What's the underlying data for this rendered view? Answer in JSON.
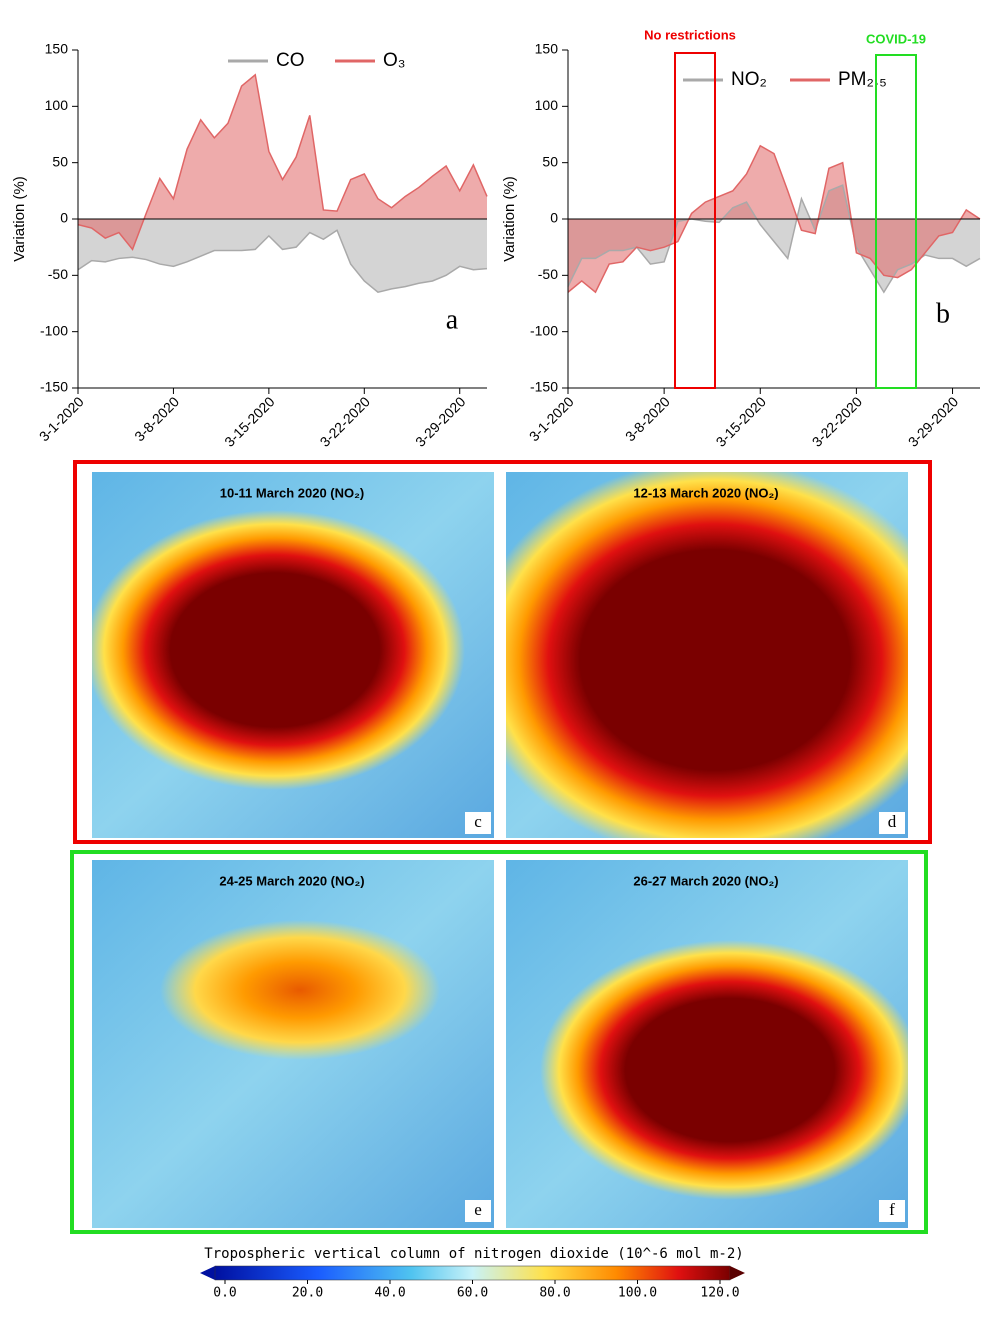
{
  "chart_data": [
    {
      "type": "area",
      "panel_label": "a",
      "ylabel": "Variation (%)",
      "categories": [
        "3-1-2020",
        null,
        null,
        null,
        null,
        null,
        null,
        "3-8-2020",
        null,
        null,
        null,
        null,
        null,
        null,
        "3-15-2020",
        null,
        null,
        null,
        null,
        null,
        null,
        "3-22-2020",
        null,
        null,
        null,
        null,
        null,
        null,
        "3-29-2020",
        null,
        null
      ],
      "series": [
        {
          "name": "CO",
          "color": "#a9a9a9",
          "values": [
            -45,
            -37,
            -38,
            -35,
            -34,
            -36,
            -40,
            -42,
            -38,
            -33,
            -28,
            -28,
            -28,
            -27,
            -15,
            -27,
            -25,
            -12,
            -18,
            -10,
            -40,
            -55,
            -65,
            -62,
            -60,
            -57,
            -55,
            -50,
            -42,
            -45,
            -44
          ]
        },
        {
          "name": "O₃",
          "color": "#e06666",
          "values": [
            -5,
            -8,
            -17,
            -12,
            -27,
            5,
            36,
            18,
            62,
            88,
            72,
            85,
            118,
            128,
            60,
            35,
            55,
            92,
            8,
            7,
            35,
            40,
            18,
            10,
            20,
            28,
            38,
            47,
            25,
            48,
            20
          ]
        }
      ],
      "ylim": [
        -150,
        150
      ],
      "yticks": [
        -150,
        -100,
        -50,
        0,
        50,
        100,
        150
      ]
    },
    {
      "type": "area",
      "panel_label": "b",
      "ylabel": "Variation (%)",
      "annotations": [
        "No restrictions",
        "COVID-19"
      ],
      "categories": [
        "3-1-2020",
        null,
        null,
        null,
        null,
        null,
        null,
        "3-8-2020",
        null,
        null,
        null,
        null,
        null,
        null,
        "3-15-2020",
        null,
        null,
        null,
        null,
        null,
        null,
        "3-22-2020",
        null,
        null,
        null,
        null,
        null,
        null,
        "3-29-2020",
        null,
        null
      ],
      "series": [
        {
          "name": "NO₂",
          "color": "#a9a9a9",
          "values": [
            -60,
            -35,
            -35,
            -28,
            -28,
            -25,
            -40,
            -38,
            -2,
            0,
            -2,
            -3,
            10,
            15,
            -5,
            -20,
            -35,
            18,
            -10,
            25,
            30,
            -25,
            -45,
            -65,
            -45,
            -40,
            -32,
            -35,
            -35,
            -42,
            -35
          ]
        },
        {
          "name": "PM₂.₅",
          "color": "#e06666",
          "values": [
            -65,
            -55,
            -65,
            -40,
            -38,
            -25,
            -28,
            -25,
            -20,
            5,
            15,
            20,
            25,
            40,
            65,
            58,
            25,
            -10,
            -13,
            45,
            50,
            -30,
            -35,
            -50,
            -52,
            -45,
            -30,
            -15,
            -12,
            8,
            0
          ]
        }
      ],
      "ylim": [
        -150,
        150
      ],
      "yticks": [
        -150,
        -100,
        -50,
        0,
        50,
        100,
        150
      ]
    }
  ],
  "maps": [
    {
      "title": "10-11 March 2020 (NO₂)",
      "label": "c"
    },
    {
      "title": "12-13 March 2020 (NO₂)",
      "label": "d"
    },
    {
      "title": "24-25 March 2020 (NO₂)",
      "label": "e"
    },
    {
      "title": "26-27 March 2020 (NO₂)",
      "label": "f"
    }
  ],
  "colorbar": {
    "title": "Tropospheric vertical column of nitrogen dioxide (10^-6 mol m-2)",
    "ticks": [
      {
        "value": 0,
        "label": "0.0"
      },
      {
        "value": 20,
        "label": "20.0"
      },
      {
        "value": 40,
        "label": "40.0"
      },
      {
        "value": 60,
        "label": "60.0"
      },
      {
        "value": 80,
        "label": "80.0"
      },
      {
        "value": 100,
        "label": "100.0"
      },
      {
        "value": 120,
        "label": "120.0"
      }
    ]
  }
}
